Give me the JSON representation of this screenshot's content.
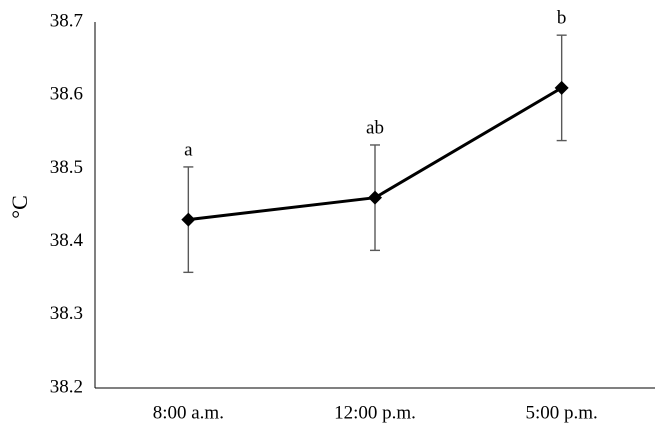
{
  "chart_data": {
    "type": "line",
    "title": "",
    "xlabel": "",
    "ylabel": "°C",
    "categories": [
      "8:00 a.m.",
      "12:00 p.m.",
      "5:00 p.m."
    ],
    "series": [
      {
        "values": [
          38.43,
          38.46,
          38.61
        ],
        "error": [
          0.072,
          0.072,
          0.072
        ],
        "annotations": [
          "a",
          "ab",
          "b"
        ],
        "color": "#000000",
        "marker": "diamond"
      }
    ],
    "ylim": [
      38.2,
      38.7
    ],
    "yticks": [
      "38.2",
      "38.3",
      "38.4",
      "38.5",
      "38.6",
      "38.7"
    ],
    "grid": false,
    "legend": "none"
  }
}
